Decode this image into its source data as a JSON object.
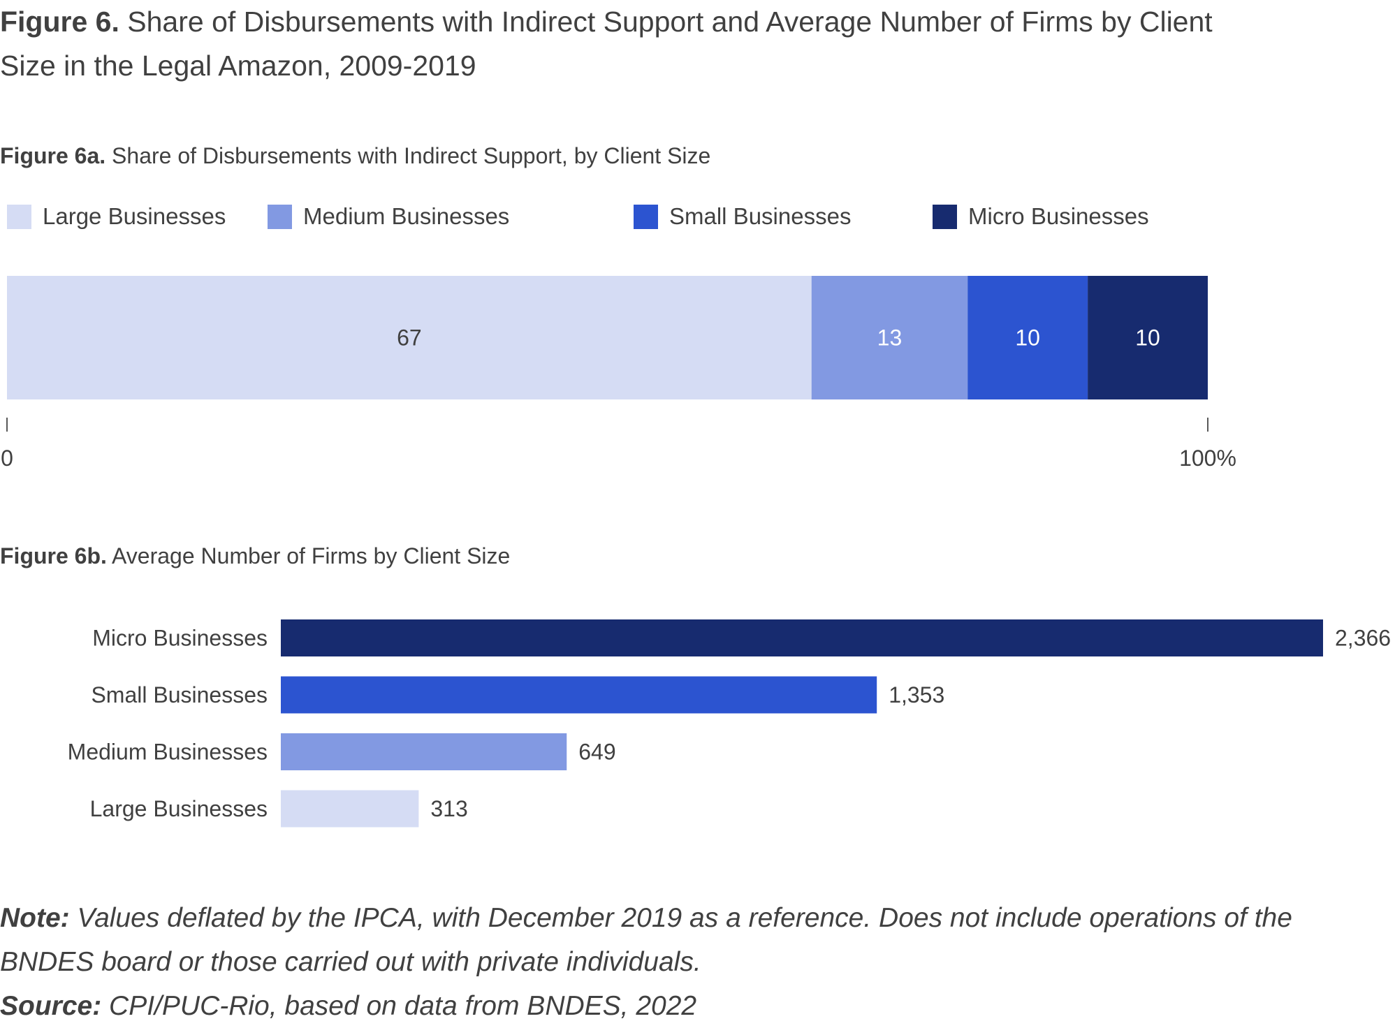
{
  "figure": {
    "label": "Figure 6.",
    "title": "Share of Disbursements with Indirect Support and Average Number of Firms by Client Size in the Legal Amazon, 2009-2019"
  },
  "colors": {
    "large": "#d5dcf4",
    "medium": "#8299e2",
    "small": "#2c54d0",
    "micro": "#172b6f",
    "text": "#404040"
  },
  "chart_data": [
    {
      "type": "bar",
      "orientation": "horizontal-stacked",
      "label": "Figure 6a.",
      "title": "Share of Disbursements with Indirect Support, by Client Size",
      "legend": [
        "Large Businesses",
        "Medium Businesses",
        "Small Businesses",
        "Micro Businesses"
      ],
      "legend_placement": "top",
      "series": [
        {
          "name": "Large Businesses",
          "value": 67,
          "color_key": "large",
          "label_color": "#404040"
        },
        {
          "name": "Medium Businesses",
          "value": 13,
          "color_key": "medium",
          "label_color": "#ffffff"
        },
        {
          "name": "Small Businesses",
          "value": 10,
          "color_key": "small",
          "label_color": "#ffffff"
        },
        {
          "name": "Micro Businesses",
          "value": 10,
          "color_key": "micro",
          "label_color": "#ffffff"
        }
      ],
      "xlim": [
        0,
        100
      ],
      "axis_tick_labels": [
        "0",
        "100%"
      ],
      "grid": false
    },
    {
      "type": "bar",
      "orientation": "horizontal",
      "label": "Figure 6b.",
      "title": "Average Number of Firms by Client Size",
      "categories": [
        "Micro Businesses",
        "Small Businesses",
        "Medium Businesses",
        "Large Businesses"
      ],
      "values": [
        2366,
        1353,
        649,
        313
      ],
      "value_labels": [
        "2,366",
        "1,353",
        "649",
        "313"
      ],
      "color_keys": [
        "micro",
        "small",
        "medium",
        "large"
      ],
      "xlim": [
        0,
        2366
      ],
      "grid": false
    }
  ],
  "notes": {
    "note_label": "Note:",
    "note_text": "Values deflated by the IPCA, with December 2019 as a reference. Does not include operations of the BNDES board or those carried out with private individuals.",
    "source_label": "Source:",
    "source_text": "CPI/PUC-Rio, based on data from BNDES, 2022"
  }
}
